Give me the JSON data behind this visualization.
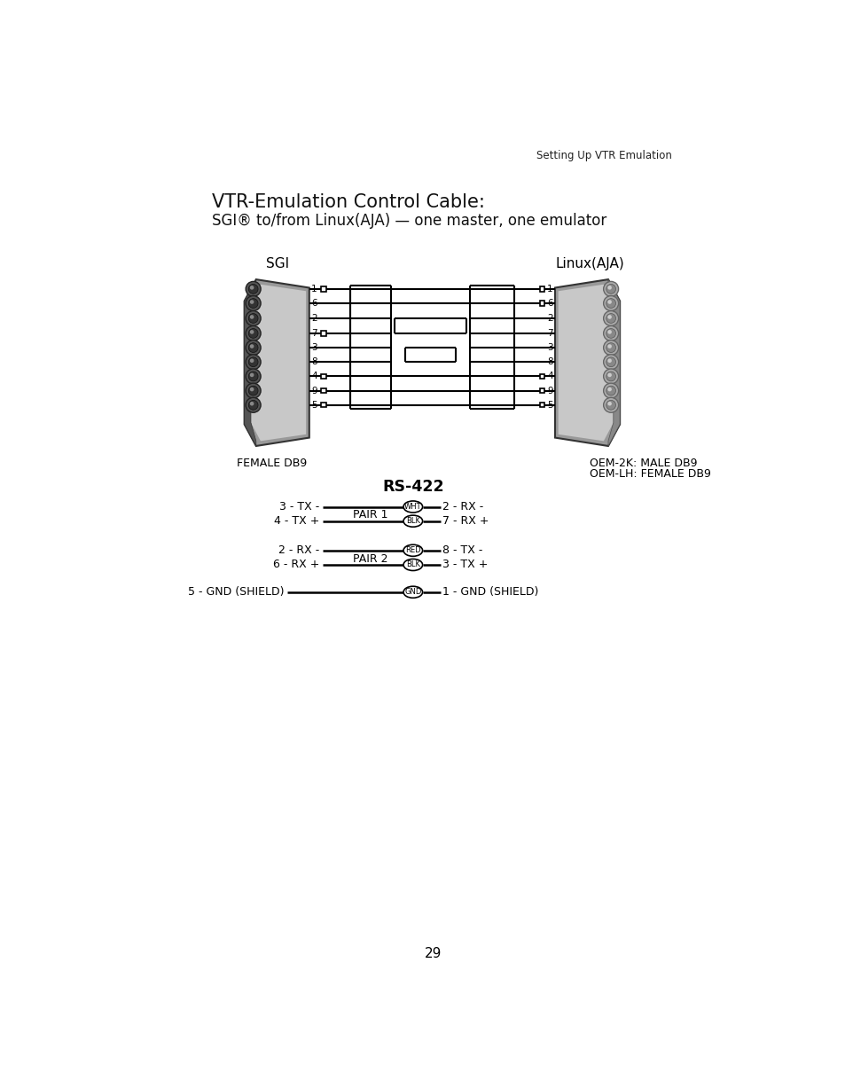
{
  "title_line1": "VTR-Emulation Control Cable:",
  "title_line2": "SGI® to/from Linux(AJA) — one master, one emulator",
  "header_right": "Setting Up VTR Emulation",
  "sgi_label": "SGI",
  "linux_label": "Linux(AJA)",
  "female_db9": "FEMALE DB9",
  "oem_2k": "OEM-2K: MALE DB9",
  "oem_lh": "OEM-LH: FEMALE DB9",
  "rs422_label": "RS-422",
  "page_number": "29",
  "bg_color": "#ffffff",
  "pair1_line1_left": "3 - TX -",
  "pair1_line1_right": "2 - RX -",
  "pair1_line1_wire": "WHT",
  "pair1_line2_left": "4 - TX +",
  "pair1_line2_right": "7 - RX +",
  "pair1_line2_wire": "BLK",
  "pair1_label": "PAIR 1",
  "pair2_line1_left": "2 - RX -",
  "pair2_line1_right": "8 - TX -",
  "pair2_line1_wire": "RED",
  "pair2_line2_left": "6 - RX +",
  "pair2_line2_right": "3 - TX +",
  "pair2_line2_wire": "BLK",
  "pair2_label": "PAIR 2",
  "gnd_left": "5 - GND (SHIELD)",
  "gnd_right": "1 - GND (SHIELD)",
  "gnd_wire": "GND"
}
